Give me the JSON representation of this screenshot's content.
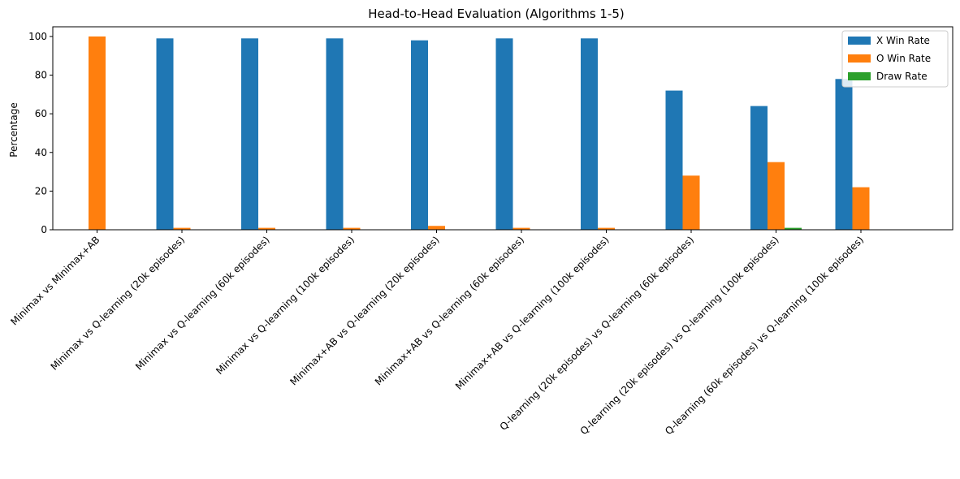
{
  "chart_data": {
    "type": "bar",
    "title": "Head-to-Head Evaluation (Algorithms 1-5)",
    "xlabel": "",
    "ylabel": "Percentage",
    "ylim": [
      0,
      105
    ],
    "yticks": [
      0,
      20,
      40,
      60,
      80,
      100
    ],
    "grid": false,
    "legend_position": "top-right",
    "categories": [
      "Minimax vs Minimax+AB",
      "Minimax vs Q-learning (20k episodes)",
      "Minimax vs Q-learning (60k episodes)",
      "Minimax vs Q-learning (100k episodes)",
      "Minimax+AB vs Q-learning (20k episodes)",
      "Minimax+AB vs Q-learning (60k episodes)",
      "Minimax+AB vs Q-learning (100k episodes)",
      "Q-learning (20k episodes) vs Q-learning (60k episodes)",
      "Q-learning (20k episodes) vs Q-learning (100k episodes)",
      "Q-learning (60k episodes) vs Q-learning (100k episodes)"
    ],
    "series": [
      {
        "name": "X Win Rate",
        "color": "#1f77b4",
        "values": [
          0,
          99,
          99,
          99,
          98,
          99,
          99,
          72,
          64,
          78
        ]
      },
      {
        "name": "O Win Rate",
        "color": "#ff7f0e",
        "values": [
          100,
          1,
          1,
          1,
          2,
          1,
          1,
          28,
          35,
          22
        ]
      },
      {
        "name": "Draw Rate",
        "color": "#2ca02c",
        "values": [
          0,
          0,
          0,
          0,
          0,
          0,
          0,
          0,
          1,
          0
        ]
      }
    ]
  }
}
